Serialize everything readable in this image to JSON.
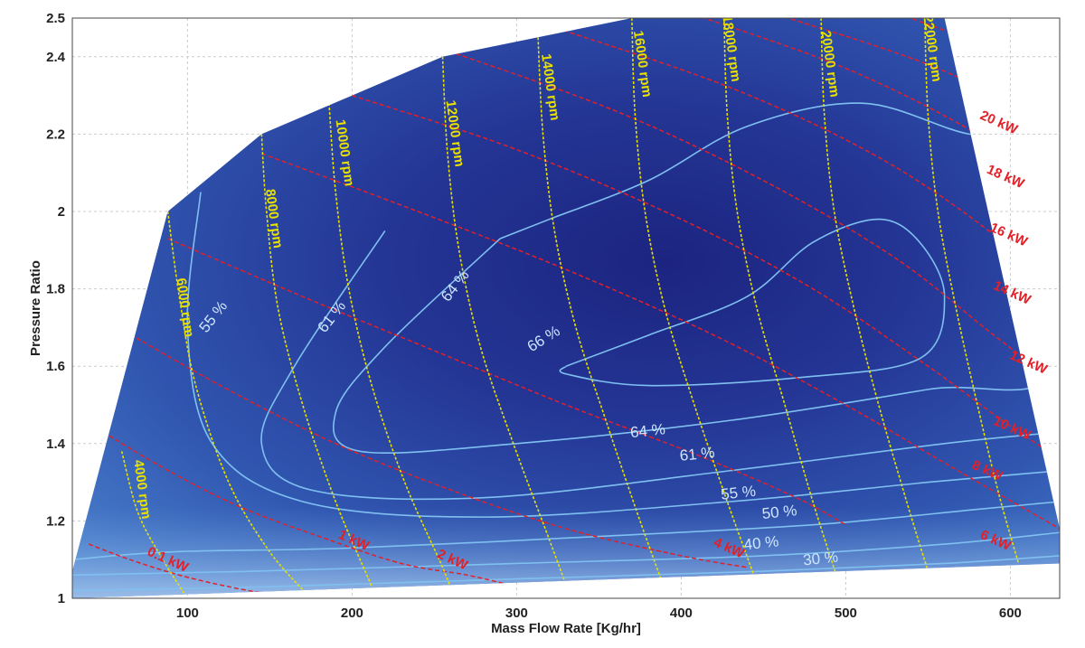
{
  "chart_data": {
    "type": "contour",
    "title": "",
    "xlabel": "Mass Flow Rate [Kg/hr]",
    "ylabel": "Pressure Ratio",
    "xlim": [
      30,
      630
    ],
    "ylim": [
      1,
      2.5
    ],
    "x_ticks": [
      100,
      200,
      300,
      400,
      500,
      600
    ],
    "y_ticks": [
      1,
      1.2,
      1.4,
      1.6,
      1.8,
      2,
      2.2,
      2.4,
      2.5
    ],
    "x_tick_labels": [
      "100",
      "200",
      "300",
      "400",
      "500",
      "600"
    ],
    "y_tick_labels": [
      "1",
      "1.2",
      "1.4",
      "1.6",
      "1.8",
      "2",
      "2.2",
      "2.4",
      "2.5"
    ],
    "grid": true,
    "colors": {
      "fill_dark": "#1e2a86",
      "fill_light": "#4a7fcc",
      "speed_lines": "#e8e000",
      "power_lines": "#e32028",
      "efficiency_lines": "#7fc0f0"
    },
    "map_boundary": [
      [
        30,
        1
      ],
      [
        30,
        1.07
      ],
      [
        88,
        2.0
      ],
      [
        145,
        2.2
      ],
      [
        255,
        2.4
      ],
      [
        370,
        2.5
      ],
      [
        560,
        2.5
      ],
      [
        630,
        1.18
      ],
      [
        630,
        1.09
      ],
      [
        30,
        1
      ]
    ],
    "speed_lines": [
      {
        "label": "4000 rpm",
        "points": [
          [
            60,
            1.38
          ],
          [
            70,
            1.22
          ],
          [
            85,
            1.1
          ],
          [
            100,
            1.0
          ]
        ],
        "label_at": [
          70,
          1.28
        ]
      },
      {
        "label": "6000 rpm",
        "points": [
          [
            88,
            2.0
          ],
          [
            95,
            1.78
          ],
          [
            105,
            1.55
          ],
          [
            125,
            1.3
          ],
          [
            150,
            1.12
          ],
          [
            175,
            1.0
          ]
        ],
        "label_at": [
          96,
          1.75
        ]
      },
      {
        "label": "8000 rpm",
        "points": [
          [
            145,
            2.2
          ],
          [
            148,
            2.0
          ],
          [
            155,
            1.75
          ],
          [
            170,
            1.5
          ],
          [
            190,
            1.25
          ],
          [
            210,
            1.05
          ],
          [
            215,
            1.0
          ]
        ],
        "label_at": [
          150,
          1.98
        ]
      },
      {
        "label": "10000 rpm",
        "points": [
          [
            186,
            2.28
          ],
          [
            190,
            2.05
          ],
          [
            198,
            1.8
          ],
          [
            212,
            1.55
          ],
          [
            232,
            1.3
          ],
          [
            255,
            1.08
          ],
          [
            262,
            1.0
          ]
        ],
        "label_at": [
          193,
          2.15
        ]
      },
      {
        "label": "12000 rpm",
        "points": [
          [
            255,
            2.4
          ],
          [
            258,
            2.15
          ],
          [
            265,
            1.9
          ],
          [
            278,
            1.65
          ],
          [
            298,
            1.4
          ],
          [
            320,
            1.15
          ],
          [
            333,
            1.0
          ]
        ],
        "label_at": [
          260,
          2.2
        ]
      },
      {
        "label": "14000 rpm",
        "points": [
          [
            313,
            2.45
          ],
          [
            316,
            2.2
          ],
          [
            323,
            1.95
          ],
          [
            336,
            1.7
          ],
          [
            355,
            1.45
          ],
          [
            375,
            1.2
          ],
          [
            392,
            1.0
          ]
        ],
        "label_at": [
          318,
          2.32
        ]
      },
      {
        "label": "16000 rpm",
        "points": [
          [
            370,
            2.5
          ],
          [
            372,
            2.25
          ],
          [
            378,
            2.0
          ],
          [
            390,
            1.75
          ],
          [
            408,
            1.5
          ],
          [
            428,
            1.25
          ],
          [
            445,
            1.05
          ]
        ],
        "label_at": [
          374,
          2.38
        ]
      },
      {
        "label": "18000 rpm",
        "points": [
          [
            426,
            2.5
          ],
          [
            428,
            2.25
          ],
          [
            434,
            2.0
          ],
          [
            446,
            1.75
          ],
          [
            463,
            1.5
          ],
          [
            480,
            1.25
          ],
          [
            495,
            1.05
          ]
        ],
        "label_at": [
          428,
          2.42
        ]
      },
      {
        "label": "20000 rpm",
        "points": [
          [
            485,
            2.5
          ],
          [
            487,
            2.25
          ],
          [
            493,
            2.0
          ],
          [
            505,
            1.75
          ],
          [
            520,
            1.5
          ],
          [
            537,
            1.25
          ],
          [
            550,
            1.07
          ]
        ],
        "label_at": [
          488,
          2.38
        ]
      },
      {
        "label": "22000 rpm",
        "points": [
          [
            548,
            2.5
          ],
          [
            550,
            2.25
          ],
          [
            556,
            2.0
          ],
          [
            567,
            1.75
          ],
          [
            580,
            1.5
          ],
          [
            593,
            1.27
          ],
          [
            605,
            1.09
          ]
        ],
        "label_at": [
          550,
          2.42
        ]
      }
    ],
    "power_lines": [
      {
        "label": "0.1 kW",
        "points": [
          [
            40,
            1.14
          ],
          [
            65,
            1.1
          ],
          [
            95,
            1.06
          ],
          [
            125,
            1.03
          ],
          [
            150,
            1.01
          ]
        ],
        "label_at": [
          87,
          1.09
        ]
      },
      {
        "label": "1 kW",
        "points": [
          [
            30,
            1.48
          ],
          [
            80,
            1.35
          ],
          [
            130,
            1.24
          ],
          [
            180,
            1.16
          ],
          [
            230,
            1.09
          ],
          [
            270,
            1.06
          ],
          [
            300,
            1.03
          ]
        ],
        "label_at": [
          200,
          1.14
        ]
      },
      {
        "label": "2 kW",
        "points": [
          [
            50,
            1.72
          ],
          [
            120,
            1.55
          ],
          [
            190,
            1.4
          ],
          [
            260,
            1.28
          ],
          [
            330,
            1.18
          ],
          [
            400,
            1.11
          ],
          [
            440,
            1.08
          ]
        ],
        "label_at": [
          260,
          1.09
        ]
      },
      {
        "label": "4 kW",
        "points": [
          [
            88,
            1.93
          ],
          [
            170,
            1.78
          ],
          [
            250,
            1.64
          ],
          [
            330,
            1.5
          ],
          [
            410,
            1.37
          ],
          [
            470,
            1.26
          ],
          [
            500,
            1.19
          ]
        ],
        "label_at": [
          428,
          1.12
        ]
      },
      {
        "label": "6 kW",
        "points": [
          [
            145,
            2.15
          ],
          [
            240,
            2.0
          ],
          [
            330,
            1.85
          ],
          [
            420,
            1.68
          ],
          [
            500,
            1.5
          ],
          [
            560,
            1.35
          ],
          [
            630,
            1.18
          ]
        ],
        "label_at": [
          590,
          1.14
        ]
      },
      {
        "label": "8 kW",
        "points": [
          [
            200,
            2.3
          ],
          [
            300,
            2.16
          ],
          [
            400,
            1.98
          ],
          [
            480,
            1.8
          ],
          [
            550,
            1.6
          ],
          [
            595,
            1.46
          ],
          [
            630,
            1.36
          ]
        ],
        "label_at": [
          585,
          1.32
        ]
      },
      {
        "label": "10 kW",
        "points": [
          [
            255,
            2.42
          ],
          [
            360,
            2.26
          ],
          [
            450,
            2.08
          ],
          [
            530,
            1.88
          ],
          [
            590,
            1.68
          ],
          [
            630,
            1.55
          ]
        ],
        "label_at": [
          600,
          1.43
        ]
      },
      {
        "label": "12 kW",
        "points": [
          [
            320,
            2.48
          ],
          [
            430,
            2.32
          ],
          [
            520,
            2.14
          ],
          [
            590,
            1.94
          ],
          [
            630,
            1.78
          ]
        ],
        "label_at": [
          610,
          1.6
        ]
      },
      {
        "label": "14 kW",
        "points": [
          [
            400,
            2.52
          ],
          [
            500,
            2.37
          ],
          [
            580,
            2.2
          ],
          [
            630,
            2.05
          ]
        ],
        "label_at": [
          600,
          1.78
        ]
      },
      {
        "label": "16 kW",
        "points": [
          [
            450,
            2.52
          ],
          [
            550,
            2.38
          ],
          [
            630,
            2.22
          ]
        ],
        "label_at": [
          598,
          1.93
        ]
      },
      {
        "label": "18 kW",
        "points": [
          [
            520,
            2.53
          ],
          [
            630,
            2.36
          ]
        ],
        "label_at": [
          596,
          2.08
        ]
      },
      {
        "label": "20 kW",
        "points": [
          [
            580,
            2.53
          ],
          [
            630,
            2.45
          ]
        ],
        "label_at": [
          592,
          2.22
        ]
      }
    ],
    "efficiency_contours": [
      {
        "label": "30 %",
        "points": [
          [
            30,
            1.02
          ],
          [
            150,
            1.03
          ],
          [
            300,
            1.05
          ],
          [
            450,
            1.07
          ],
          [
            560,
            1.09
          ],
          [
            630,
            1.11
          ]
        ],
        "label_at": [
          485,
          1.09
        ]
      },
      {
        "label": "40 %",
        "points": [
          [
            30,
            1.06
          ],
          [
            140,
            1.07
          ],
          [
            300,
            1.09
          ],
          [
            450,
            1.11
          ],
          [
            560,
            1.14
          ],
          [
            630,
            1.17
          ]
        ],
        "label_at": [
          449,
          1.13
        ]
      },
      {
        "label": "50 %",
        "points": [
          [
            30,
            1.1
          ],
          [
            90,
            1.12
          ],
          [
            200,
            1.13
          ],
          [
            350,
            1.16
          ],
          [
            480,
            1.19
          ],
          [
            580,
            1.23
          ],
          [
            630,
            1.25
          ]
        ],
        "label_at": [
          460,
          1.21
        ]
      },
      {
        "label": "55 %",
        "points": [
          [
            108,
            2.05
          ],
          [
            100,
            1.7
          ],
          [
            115,
            1.4
          ],
          [
            170,
            1.25
          ],
          [
            280,
            1.21
          ],
          [
            430,
            1.25
          ],
          [
            550,
            1.3
          ],
          [
            630,
            1.33
          ]
        ],
        "label_at": [
          118,
          1.72
        ],
        "label2_at": [
          435,
          1.26
        ]
      },
      {
        "label": "61 %",
        "points": [
          [
            220,
            1.95
          ],
          [
            165,
            1.6
          ],
          [
            145,
            1.4
          ],
          [
            175,
            1.28
          ],
          [
            280,
            1.26
          ],
          [
            430,
            1.33
          ],
          [
            560,
            1.4
          ],
          [
            630,
            1.43
          ]
        ],
        "label_at": [
          190,
          1.72
        ],
        "label2_at": [
          410,
          1.36
        ]
      },
      {
        "label": "64 %",
        "points": [
          [
            290,
            1.93
          ],
          [
            220,
            1.65
          ],
          [
            190,
            1.48
          ],
          [
            205,
            1.38
          ],
          [
            300,
            1.4
          ],
          [
            430,
            1.46
          ],
          [
            550,
            1.54
          ],
          [
            630,
            1.6
          ],
          [
            630,
            2.18
          ],
          [
            575,
            2.2
          ],
          [
            510,
            2.28
          ],
          [
            440,
            2.22
          ],
          [
            380,
            2.08
          ],
          [
            320,
            1.98
          ],
          [
            290,
            1.93
          ]
        ],
        "label_at": [
          265,
          1.8
        ],
        "label2_at": [
          380,
          1.42
        ]
      },
      {
        "label": "66 %",
        "points": [
          [
            330,
            1.6
          ],
          [
            380,
            1.68
          ],
          [
            440,
            1.78
          ],
          [
            480,
            1.92
          ],
          [
            520,
            1.98
          ],
          [
            545,
            1.92
          ],
          [
            560,
            1.78
          ],
          [
            545,
            1.62
          ],
          [
            470,
            1.57
          ],
          [
            380,
            1.55
          ],
          [
            330,
            1.58
          ],
          [
            330,
            1.6
          ]
        ],
        "label_at": [
          318,
          1.66
        ]
      }
    ],
    "efficiency_peak": [
      450,
      1.75
    ]
  }
}
